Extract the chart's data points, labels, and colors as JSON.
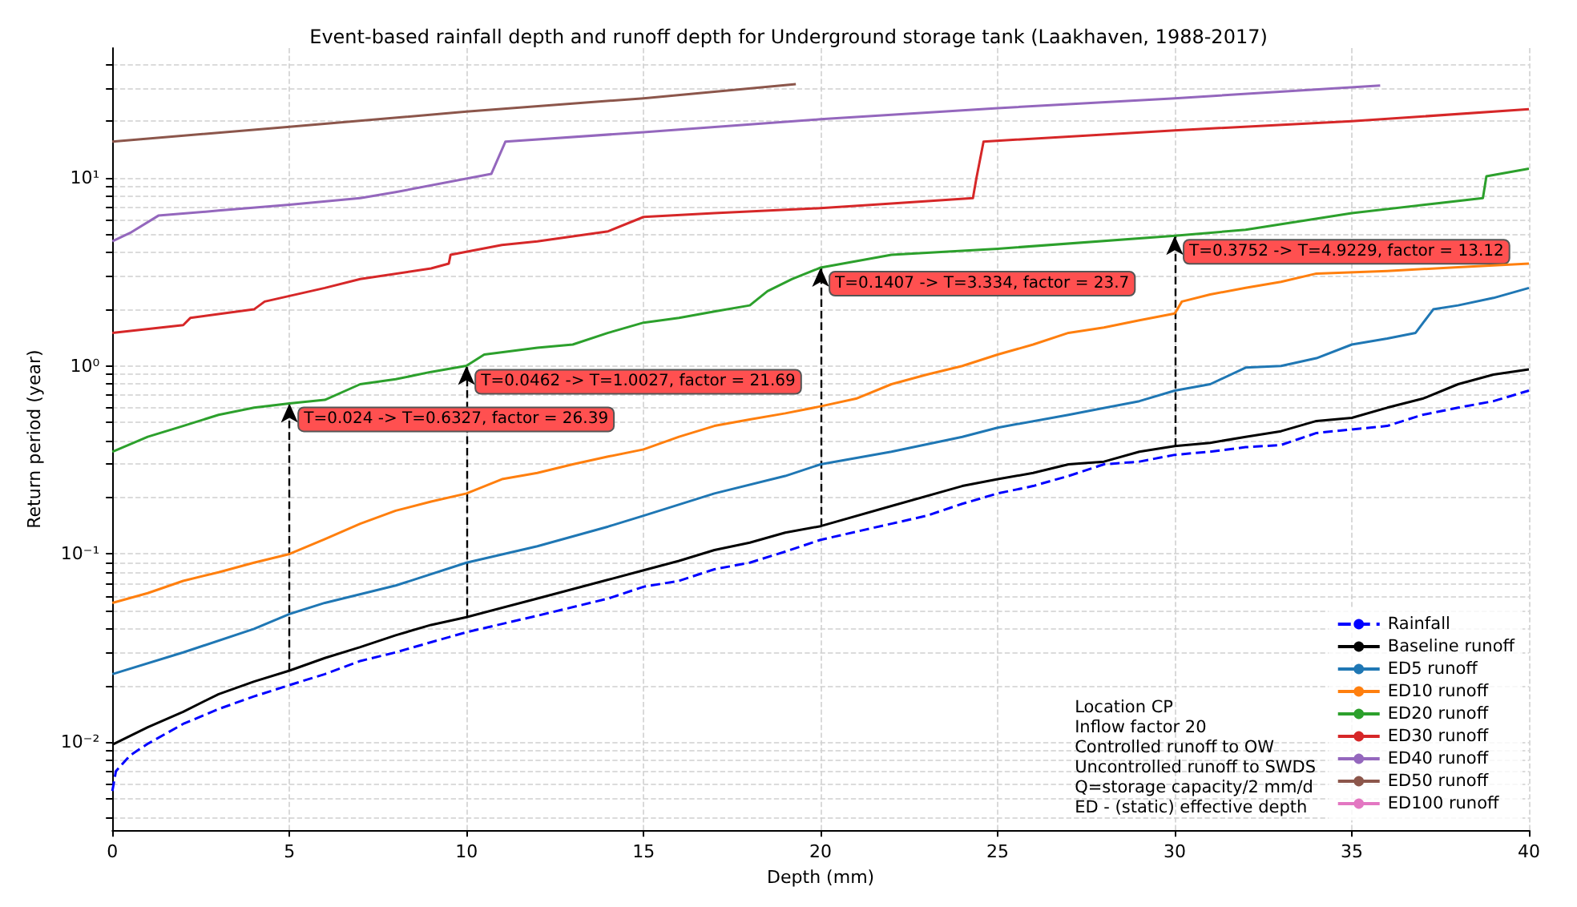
{
  "chart_data": {
    "type": "line",
    "title": "Event-based rainfall depth and runoff depth for Underground storage tank (Laakhaven, 1988-2017)",
    "xlabel": "Depth (mm)",
    "ylabel": "Return period (year)",
    "log": "y",
    "grid": true,
    "legend": "bottom right",
    "xlim": [
      0,
      40
    ],
    "xticks": [
      0,
      5,
      10,
      15,
      20,
      25,
      30,
      35,
      40
    ],
    "ylim": [
      0.0034,
      49
    ],
    "yticks": [
      {
        "value": 0.004,
        "label": null
      },
      {
        "value": 0.005,
        "label": null
      },
      {
        "value": 0.006,
        "label": null
      },
      {
        "value": 0.007,
        "label": null
      },
      {
        "value": 0.008,
        "label": null
      },
      {
        "value": 0.009,
        "label": null
      },
      {
        "value": 0.01,
        "label": "10⁻²"
      },
      {
        "value": 0.02,
        "label": null
      },
      {
        "value": 0.03,
        "label": null
      },
      {
        "value": 0.04,
        "label": null
      },
      {
        "value": 0.05,
        "label": null
      },
      {
        "value": 0.06,
        "label": null
      },
      {
        "value": 0.07,
        "label": null
      },
      {
        "value": 0.08,
        "label": null
      },
      {
        "value": 0.09,
        "label": null
      },
      {
        "value": 0.1,
        "label": "10⁻¹"
      },
      {
        "value": 0.2,
        "label": null
      },
      {
        "value": 0.3,
        "label": null
      },
      {
        "value": 0.4,
        "label": null
      },
      {
        "value": 0.5,
        "label": null
      },
      {
        "value": 0.6,
        "label": null
      },
      {
        "value": 0.7,
        "label": null
      },
      {
        "value": 0.8,
        "label": null
      },
      {
        "value": 0.9,
        "label": null
      },
      {
        "value": 1,
        "label": "10⁰"
      },
      {
        "value": 2,
        "label": null
      },
      {
        "value": 3,
        "label": null
      },
      {
        "value": 4,
        "label": null
      },
      {
        "value": 5,
        "label": null
      },
      {
        "value": 6,
        "label": null
      },
      {
        "value": 7,
        "label": null
      },
      {
        "value": 8,
        "label": null
      },
      {
        "value": 9,
        "label": null
      },
      {
        "value": 10,
        "label": "10¹"
      },
      {
        "value": 20,
        "label": null
      },
      {
        "value": 30,
        "label": null
      },
      {
        "value": 40,
        "label": null
      }
    ],
    "series": [
      {
        "name": "Rainfall",
        "color": "#0000ff",
        "line_style": "dashed",
        "x": [
          0,
          0.1,
          0.5,
          1,
          2,
          3,
          4,
          5,
          6,
          7,
          8,
          9,
          10,
          12,
          14,
          15,
          16,
          17,
          18,
          19,
          20,
          22,
          23,
          24,
          25,
          26,
          27,
          28,
          29,
          30,
          31,
          32,
          33,
          34,
          35,
          36,
          37,
          38,
          39,
          40
        ],
        "values": [
          0.0055,
          0.007,
          0.0085,
          0.0098,
          0.0125,
          0.015,
          0.0175,
          0.0201,
          0.023,
          0.027,
          0.03,
          0.034,
          0.0384,
          0.047,
          0.058,
          0.067,
          0.072,
          0.083,
          0.09,
          0.103,
          0.119,
          0.145,
          0.16,
          0.185,
          0.21,
          0.23,
          0.26,
          0.3,
          0.31,
          0.337,
          0.35,
          0.37,
          0.38,
          0.44,
          0.46,
          0.48,
          0.55,
          0.6,
          0.65,
          0.74
        ]
      },
      {
        "name": "Baseline runoff",
        "color": "#000000",
        "x": [
          0,
          1,
          2,
          3,
          4,
          5,
          6,
          7,
          8,
          9,
          10,
          12,
          14,
          15,
          16,
          17,
          18,
          19,
          20,
          22,
          24,
          25,
          26,
          27,
          28,
          29,
          30,
          31,
          32,
          33,
          34,
          35,
          36,
          37,
          38,
          39,
          40
        ],
        "values": [
          0.0097,
          0.012,
          0.0145,
          0.018,
          0.021,
          0.024,
          0.028,
          0.032,
          0.037,
          0.042,
          0.0462,
          0.058,
          0.073,
          0.082,
          0.092,
          0.105,
          0.115,
          0.13,
          0.1407,
          0.18,
          0.23,
          0.25,
          0.27,
          0.3,
          0.31,
          0.35,
          0.3752,
          0.39,
          0.42,
          0.45,
          0.51,
          0.53,
          0.6,
          0.67,
          0.8,
          0.9,
          0.96
        ]
      },
      {
        "name": "ED5 runoff",
        "color": "#1f77b4",
        "x": [
          0,
          2,
          4,
          5,
          6,
          8,
          10,
          12,
          14,
          15,
          17,
          19,
          20,
          22,
          24,
          25,
          27,
          29,
          30,
          31,
          32,
          33,
          34,
          35,
          36,
          36.8,
          37.3,
          38,
          39,
          40
        ],
        "values": [
          0.023,
          0.03,
          0.04,
          0.048,
          0.055,
          0.068,
          0.09,
          0.11,
          0.14,
          0.16,
          0.21,
          0.26,
          0.3,
          0.35,
          0.42,
          0.47,
          0.55,
          0.65,
          0.74,
          0.8,
          0.98,
          1.0,
          1.1,
          1.3,
          1.4,
          1.5,
          2.0,
          2.1,
          2.3,
          2.6
        ]
      },
      {
        "name": "ED10 runoff",
        "color": "#ff7f0e",
        "x": [
          0,
          1,
          2,
          3,
          4,
          5,
          6,
          7,
          8,
          9,
          10,
          11,
          12,
          13,
          14,
          15,
          16,
          17,
          18,
          19,
          20,
          21,
          22,
          23,
          24,
          25,
          26,
          27,
          28,
          29,
          30,
          30.2,
          31,
          32,
          33,
          34,
          36,
          38,
          40
        ],
        "values": [
          0.055,
          0.062,
          0.072,
          0.08,
          0.09,
          0.1,
          0.12,
          0.145,
          0.17,
          0.19,
          0.21,
          0.25,
          0.27,
          0.3,
          0.33,
          0.36,
          0.42,
          0.48,
          0.52,
          0.56,
          0.61,
          0.67,
          0.8,
          0.9,
          1.0,
          1.15,
          1.3,
          1.5,
          1.6,
          1.75,
          1.9,
          2.2,
          2.4,
          2.6,
          2.8,
          3.1,
          3.2,
          3.35,
          3.5
        ]
      },
      {
        "name": "ED20 runoff",
        "color": "#2ca02c",
        "x": [
          0,
          1,
          2,
          3,
          4,
          5,
          6,
          7,
          8,
          9,
          10,
          10.5,
          12,
          13,
          14,
          15,
          16,
          17,
          18,
          18.5,
          19.2,
          20,
          22,
          25,
          30,
          32,
          35,
          38.7,
          38.8,
          40
        ],
        "values": [
          0.35,
          0.42,
          0.48,
          0.55,
          0.6,
          0.6327,
          0.66,
          0.8,
          0.85,
          0.93,
          1.0027,
          1.15,
          1.25,
          1.3,
          1.5,
          1.7,
          1.8,
          1.95,
          2.1,
          2.5,
          2.9,
          3.334,
          3.9,
          4.2,
          4.9229,
          5.3,
          6.5,
          7.8,
          10.2,
          11.2
        ]
      },
      {
        "name": "ED30 runoff",
        "color": "#d62728",
        "x": [
          0,
          2,
          2.2,
          4,
          4.3,
          6,
          7,
          9,
          9.5,
          9.55,
          11,
          12,
          14,
          15,
          17,
          20,
          24.3,
          24.4,
          24.6,
          30,
          35,
          40
        ],
        "values": [
          1.5,
          1.65,
          1.8,
          2.0,
          2.2,
          2.6,
          2.9,
          3.3,
          3.5,
          3.9,
          4.4,
          4.6,
          5.2,
          6.2,
          6.5,
          6.9,
          7.8,
          10,
          15.6,
          17.9,
          20,
          23.2
        ]
      },
      {
        "name": "ED40 runoff",
        "color": "#9467bd",
        "x": [
          0,
          0.5,
          1.3,
          3,
          5,
          7,
          8,
          10.7,
          11.1,
          15,
          20,
          25,
          30,
          35.8
        ],
        "values": [
          4.6,
          5.1,
          6.3,
          6.7,
          7.2,
          7.8,
          8.4,
          10.5,
          15.6,
          17.5,
          20.5,
          23.5,
          26.5,
          31
        ]
      },
      {
        "name": "ED50 runoff",
        "color": "#8c564b",
        "x": [
          0,
          5,
          10,
          15,
          19.3
        ],
        "values": [
          15.6,
          18.7,
          22.5,
          26.5,
          31.5
        ]
      },
      {
        "name": "ED100 runoff",
        "color": "#e377c2"
      }
    ],
    "annotations": [
      {
        "text": "T=0.024 -> T=0.6327, factor = 26.39",
        "x": 5,
        "y": 0.6327
      },
      {
        "text": "T=0.0462 -> T=1.0027, factor = 21.69",
        "x": 10,
        "y": 1.0027
      },
      {
        "text": "T=0.1407 -> T=3.334, factor = 23.7",
        "x": 20,
        "y": 3.334
      },
      {
        "text": "T=0.3752 -> T=4.9229, factor = 13.12",
        "x": 30,
        "y": 4.9229
      },
      "Location CP",
      "Inflow factor 20",
      "Controlled runoff to OW",
      "Uncontrolled runoff to SWDS",
      "Q=storage capacity/2 mm/d",
      "ED - (static) effective depth"
    ]
  }
}
